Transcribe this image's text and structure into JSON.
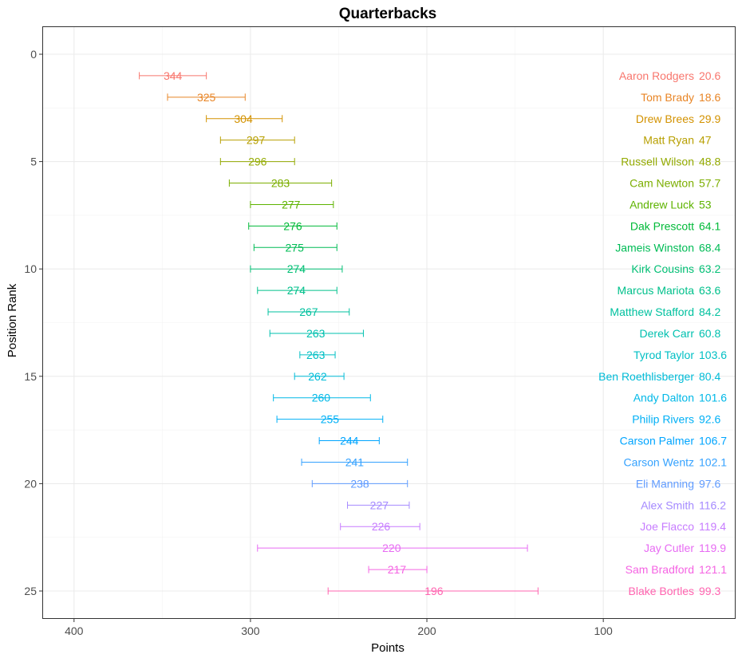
{
  "chart_data": {
    "type": "errorbar",
    "title": "Quarterbacks",
    "xlabel": "Points",
    "ylabel": "Position Rank",
    "x_reversed": true,
    "xlim": [
      418,
      25
    ],
    "ylim": [
      -1.3,
      26.3
    ],
    "x_ticks": [
      400,
      300,
      200,
      100
    ],
    "y_ticks": [
      0,
      5,
      10,
      15,
      20,
      25
    ],
    "grid": true,
    "players": [
      {
        "rank": 1,
        "name": "Aaron Rodgers",
        "points": 344,
        "low": 325,
        "high": 363,
        "value": "20.6",
        "color": "#F8766D"
      },
      {
        "rank": 2,
        "name": "Tom Brady",
        "points": 325,
        "low": 303,
        "high": 347,
        "value": "18.6",
        "color": "#E88526"
      },
      {
        "rank": 3,
        "name": "Drew Brees",
        "points": 304,
        "low": 282,
        "high": 325,
        "value": "29.9",
        "color": "#D39200"
      },
      {
        "rank": 4,
        "name": "Matt Ryan",
        "points": 297,
        "low": 275,
        "high": 317,
        "value": "47",
        "color": "#B79F00"
      },
      {
        "rank": 5,
        "name": "Russell Wilson",
        "points": 296,
        "low": 275,
        "high": 317,
        "value": "48.8",
        "color": "#93AA00"
      },
      {
        "rank": 6,
        "name": "Cam Newton",
        "points": 283,
        "low": 254,
        "high": 312,
        "value": "57.7",
        "color": "#7CAE00"
      },
      {
        "rank": 7,
        "name": "Andrew Luck",
        "points": 277,
        "low": 253,
        "high": 300,
        "value": "53",
        "color": "#5EB300"
      },
      {
        "rank": 8,
        "name": "Dak Prescott",
        "points": 276,
        "low": 251,
        "high": 301,
        "value": "64.1",
        "color": "#00BA38"
      },
      {
        "rank": 9,
        "name": "Jameis Winston",
        "points": 275,
        "low": 251,
        "high": 298,
        "value": "68.4",
        "color": "#00BC56"
      },
      {
        "rank": 10,
        "name": "Kirk Cousins",
        "points": 274,
        "low": 248,
        "high": 300,
        "value": "63.2",
        "color": "#00BF74"
      },
      {
        "rank": 11,
        "name": "Marcus Mariota",
        "points": 274,
        "low": 251,
        "high": 296,
        "value": "63.6",
        "color": "#00C08B"
      },
      {
        "rank": 12,
        "name": "Matthew Stafford",
        "points": 267,
        "low": 244,
        "high": 290,
        "value": "84.2",
        "color": "#00C19F"
      },
      {
        "rank": 13,
        "name": "Derek Carr",
        "points": 263,
        "low": 236,
        "high": 289,
        "value": "60.8",
        "color": "#00C0AF"
      },
      {
        "rank": 14,
        "name": "Tyrod Taylor",
        "points": 263,
        "low": 252,
        "high": 272,
        "value": "103.6",
        "color": "#00BFC4"
      },
      {
        "rank": 15,
        "name": "Ben Roethlisberger",
        "points": 262,
        "low": 247,
        "high": 275,
        "value": "80.4",
        "color": "#00BCD8"
      },
      {
        "rank": 16,
        "name": "Andy Dalton",
        "points": 260,
        "low": 232,
        "high": 287,
        "value": "101.6",
        "color": "#00B8E7"
      },
      {
        "rank": 17,
        "name": "Philip Rivers",
        "points": 255,
        "low": 225,
        "high": 285,
        "value": "92.6",
        "color": "#00B0F6"
      },
      {
        "rank": 18,
        "name": "Carson Palmer",
        "points": 244,
        "low": 227,
        "high": 261,
        "value": "106.7",
        "color": "#00A5FF"
      },
      {
        "rank": 19,
        "name": "Carson Wentz",
        "points": 241,
        "low": 211,
        "high": 271,
        "value": "102.1",
        "color": "#35A2FF"
      },
      {
        "rank": 20,
        "name": "Eli Manning",
        "points": 238,
        "low": 211,
        "high": 265,
        "value": "97.6",
        "color": "#619CFF"
      },
      {
        "rank": 21,
        "name": "Alex Smith",
        "points": 227,
        "low": 210,
        "high": 245,
        "value": "116.2",
        "color": "#A58AFF"
      },
      {
        "rank": 22,
        "name": "Joe Flacco",
        "points": 226,
        "low": 204,
        "high": 249,
        "value": "119.4",
        "color": "#C77CFF"
      },
      {
        "rank": 23,
        "name": "Jay Cutler",
        "points": 220,
        "low": 143,
        "high": 296,
        "value": "119.9",
        "color": "#E76BF3"
      },
      {
        "rank": 24,
        "name": "Sam Bradford",
        "points": 217,
        "low": 200,
        "high": 233,
        "value": "121.1",
        "color": "#F564E3"
      },
      {
        "rank": 25,
        "name": "Blake Bortles",
        "points": 196,
        "low": 137,
        "high": 256,
        "value": "99.3",
        "color": "#FF64B0"
      }
    ]
  }
}
